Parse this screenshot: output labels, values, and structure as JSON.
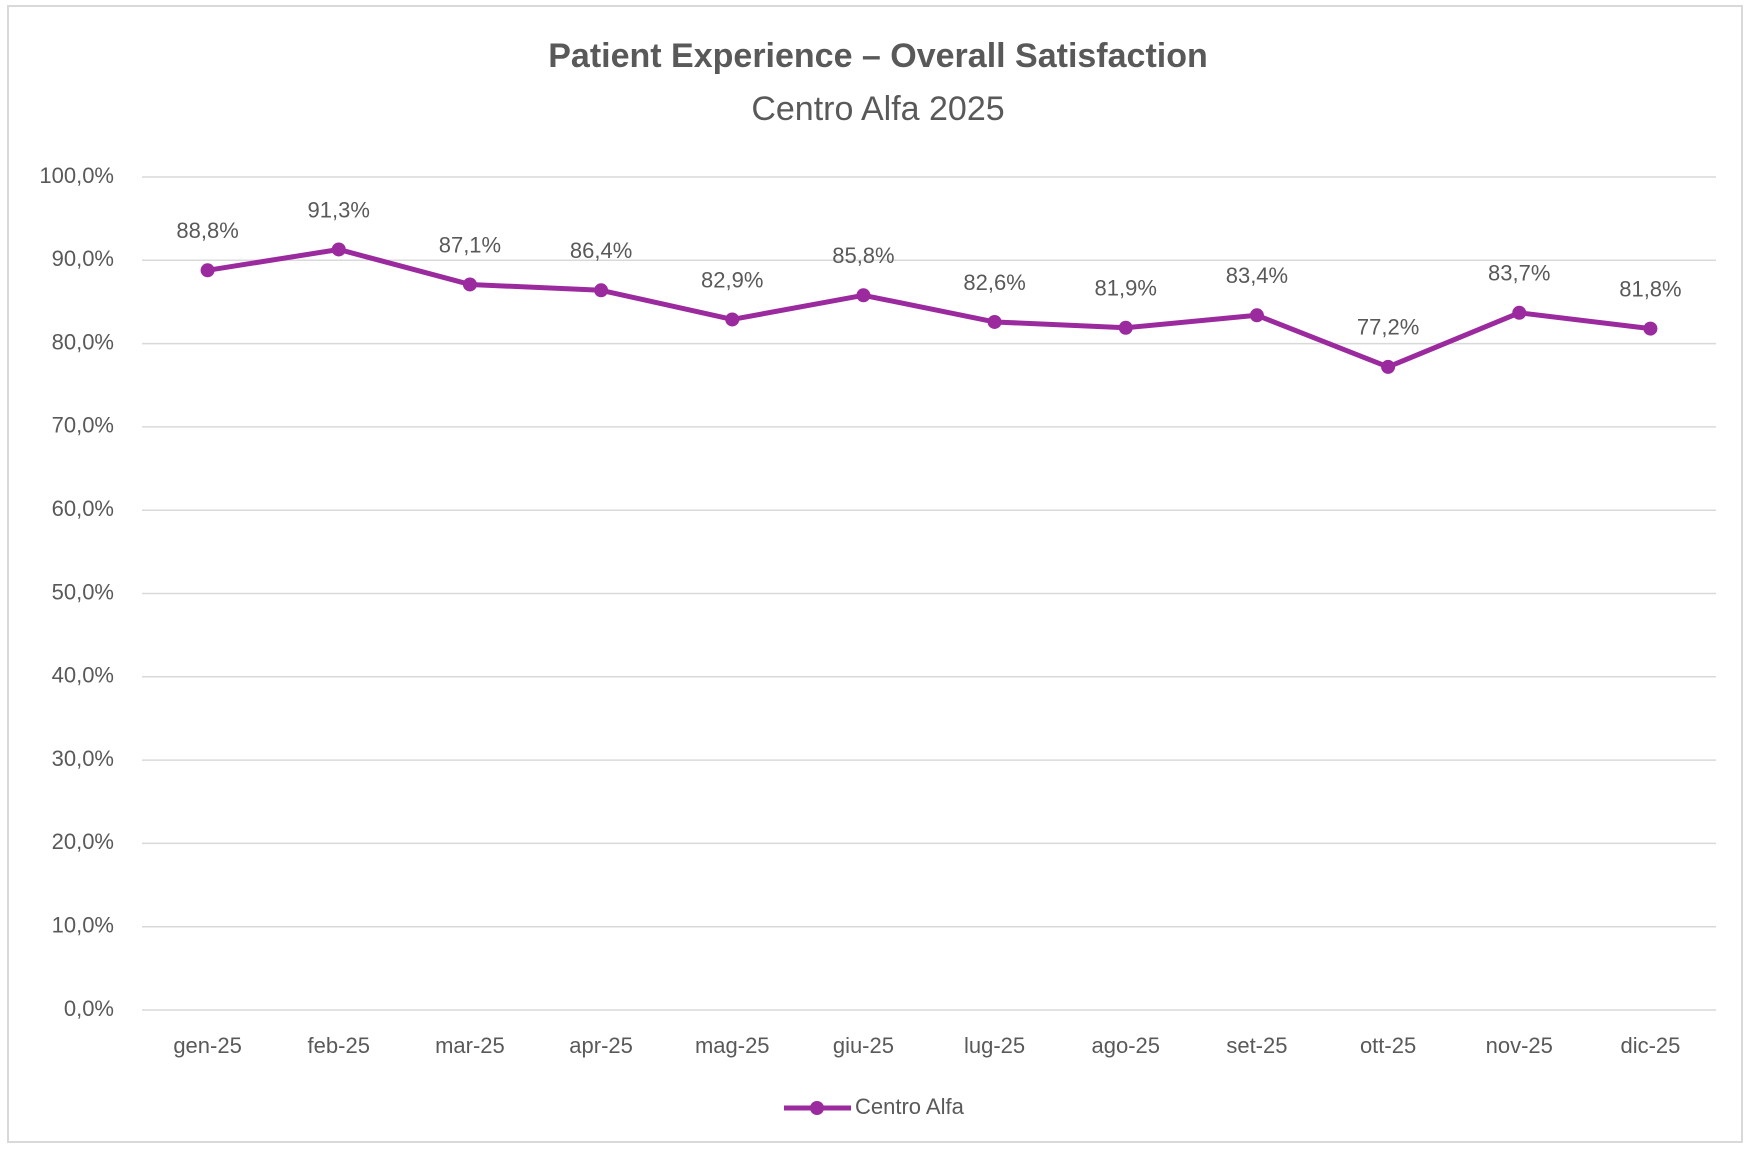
{
  "chart_data": {
    "type": "line",
    "title": "Patient Experience – Overall Satisfaction",
    "subtitle": "Centro Alfa 2025",
    "categories": [
      "gen-25",
      "feb-25",
      "mar-25",
      "apr-25",
      "mag-25",
      "giu-25",
      "lug-25",
      "ago-25",
      "set-25",
      "ott-25",
      "nov-25",
      "dic-25"
    ],
    "series": [
      {
        "name": "Centro Alfa",
        "color": "#9b2a9e",
        "values": [
          88.8,
          91.3,
          87.1,
          86.4,
          82.9,
          85.8,
          82.6,
          81.9,
          83.4,
          77.2,
          83.7,
          81.8
        ],
        "value_labels": [
          "88,8%",
          "91,3%",
          "87,1%",
          "86,4%",
          "82,9%",
          "85,8%",
          "82,6%",
          "81,9%",
          "83,4%",
          "77,2%",
          "83,7%",
          "81,8%"
        ]
      }
    ],
    "ylim": [
      0,
      100
    ],
    "yticks": [
      {
        "value": 0,
        "label": "0,0%"
      },
      {
        "value": 10,
        "label": "10,0%"
      },
      {
        "value": 20,
        "label": "20,0%"
      },
      {
        "value": 30,
        "label": "30,0%"
      },
      {
        "value": 40,
        "label": "40,0%"
      },
      {
        "value": 50,
        "label": "50,0%"
      },
      {
        "value": 60,
        "label": "60,0%"
      },
      {
        "value": 70,
        "label": "70,0%"
      },
      {
        "value": 80,
        "label": "80,0%"
      },
      {
        "value": 90,
        "label": "90,0%"
      },
      {
        "value": 100,
        "label": "100,0%"
      }
    ],
    "grid": true,
    "legend": "bottom"
  }
}
